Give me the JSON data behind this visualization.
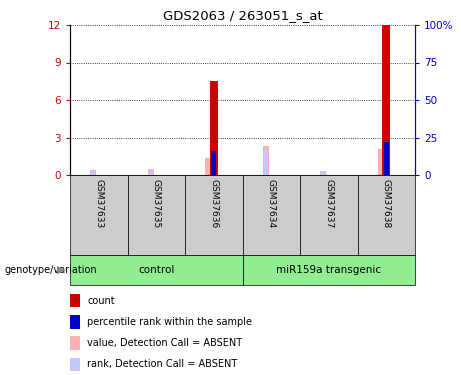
{
  "title": "GDS2063 / 263051_s_at",
  "samples": [
    "GSM37633",
    "GSM37635",
    "GSM37636",
    "GSM37634",
    "GSM37637",
    "GSM37638"
  ],
  "groups": [
    "control",
    "control",
    "control",
    "miR159a transgenic",
    "miR159a transgenic",
    "miR159a transgenic"
  ],
  "group_labels": [
    "control",
    "miR159a transgenic"
  ],
  "count_values": [
    0,
    0,
    7.5,
    0,
    0,
    12
  ],
  "percentile_rank": [
    0,
    0,
    16,
    0,
    0,
    22
  ],
  "absent_value": [
    0.4,
    0.5,
    1.4,
    2.3,
    0.35,
    2.1
  ],
  "absent_rank": [
    3.0,
    3.5,
    0,
    17,
    3.0,
    0
  ],
  "ylim_left": [
    0,
    12
  ],
  "ylim_right": [
    0,
    100
  ],
  "yticks_left": [
    0,
    3,
    6,
    9,
    12
  ],
  "yticks_right": [
    0,
    25,
    50,
    75,
    100
  ],
  "ytick_labels_left": [
    "0",
    "3",
    "6",
    "9",
    "12"
  ],
  "ytick_labels_right": [
    "0",
    "25",
    "50",
    "75",
    "100%"
  ],
  "color_count": "#cc0000",
  "color_percentile": "#0000cc",
  "color_absent_value": "#ffb0b0",
  "color_absent_rank": "#c0c8ff",
  "bar_width": 0.12,
  "legend_items": [
    {
      "color": "#cc0000",
      "label": "count"
    },
    {
      "color": "#0000cc",
      "label": "percentile rank within the sample"
    },
    {
      "color": "#ffb0b0",
      "label": "value, Detection Call = ABSENT"
    },
    {
      "color": "#c0c8ff",
      "label": "rank, Detection Call = ABSENT"
    }
  ],
  "left_axis_color": "#cc0000",
  "right_axis_color": "#0000cc",
  "bg_color": "#ffffff",
  "plot_bg_color": "#ffffff",
  "grid_color": "#000000",
  "sample_box_color": "#cccccc",
  "green_color": "#90ee90"
}
